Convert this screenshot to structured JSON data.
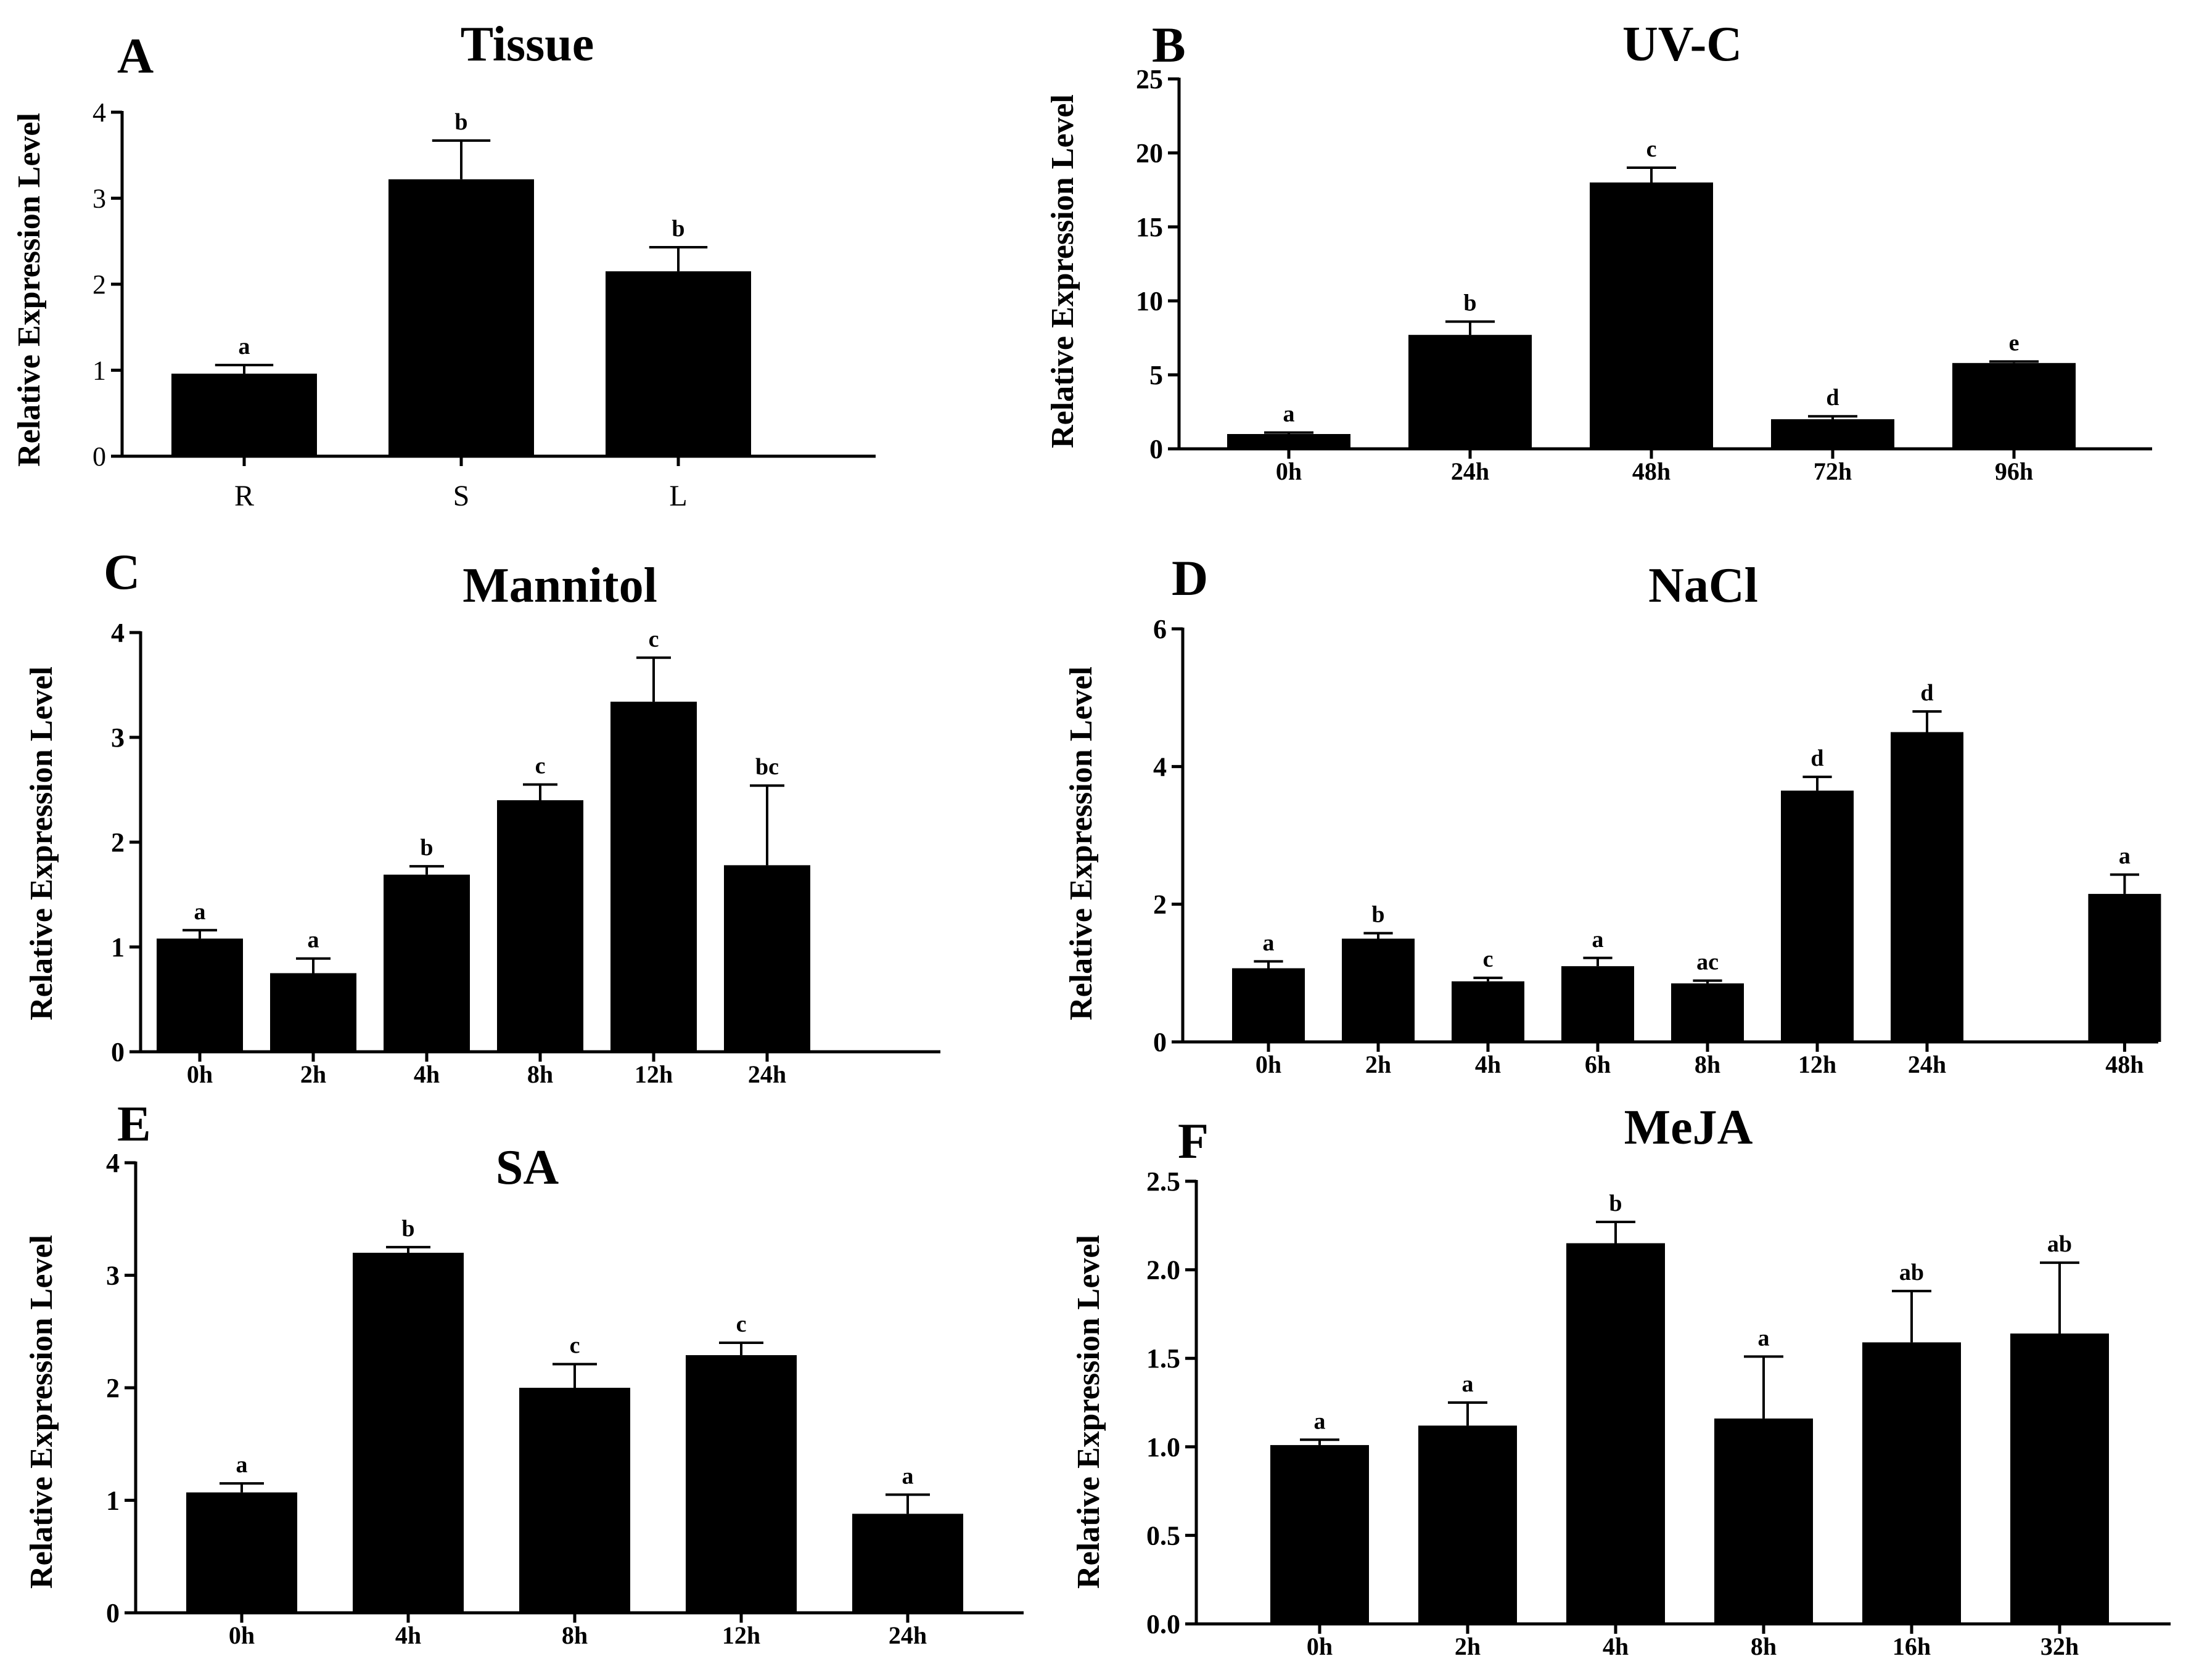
{
  "figure": {
    "ylabel": "Relative Expression Level"
  },
  "chart_data": [
    {
      "id": "A",
      "type": "bar",
      "panel": "A",
      "title": "Tissue",
      "ylabel": "Relative Expression Level",
      "xlabel": "",
      "ylim": [
        0,
        4
      ],
      "yticks": [
        0,
        1,
        2,
        3,
        4
      ],
      "ytick_labels": [
        "0",
        "1",
        "2",
        "3",
        "4"
      ],
      "categories": [
        "R",
        "S",
        "L"
      ],
      "values": [
        0.96,
        3.22,
        2.15
      ],
      "errors": [
        0.1,
        0.45,
        0.28
      ],
      "significance": [
        "a",
        "b",
        "b"
      ]
    },
    {
      "id": "B",
      "type": "bar",
      "panel": "B",
      "title": "UV-C",
      "ylabel": "Relative Expression Level",
      "xlabel": "",
      "ylim": [
        0,
        25
      ],
      "yticks": [
        0,
        5,
        10,
        15,
        20,
        25
      ],
      "ytick_labels": [
        "0",
        "5",
        "10",
        "15",
        "20",
        "25"
      ],
      "categories": [
        "0h",
        "24h",
        "48h",
        "72h",
        "96h"
      ],
      "values": [
        1.0,
        7.7,
        18.0,
        2.0,
        5.8
      ],
      "errors": [
        0.1,
        0.9,
        1.0,
        0.2,
        0.1
      ],
      "significance": [
        "a",
        "b",
        "c",
        "d",
        "e"
      ]
    },
    {
      "id": "C",
      "type": "bar",
      "panel": "C",
      "title": "Mannitol",
      "ylabel": "Relative Expression Level",
      "xlabel": "",
      "ylim": [
        0,
        4
      ],
      "yticks": [
        0,
        1,
        2,
        3,
        4
      ],
      "ytick_labels": [
        "0",
        "1",
        "2",
        "3",
        "4"
      ],
      "categories": [
        "0h",
        "2h",
        "4h",
        "8h",
        "12h",
        "24h"
      ],
      "values": [
        1.08,
        0.75,
        1.69,
        2.4,
        3.34,
        1.78
      ],
      "errors": [
        0.08,
        0.14,
        0.08,
        0.15,
        0.42,
        0.76
      ],
      "significance": [
        "a",
        "a",
        "b",
        "c",
        "c",
        "bc"
      ]
    },
    {
      "id": "D",
      "type": "bar",
      "panel": "D",
      "title": "NaCl",
      "ylabel": "Relative Expression Level",
      "xlabel": "",
      "ylim": [
        0,
        6
      ],
      "yticks": [
        0,
        2,
        4,
        6
      ],
      "ytick_labels": [
        "0",
        "2",
        "4",
        "6"
      ],
      "categories": [
        "0h",
        "2h",
        "4h",
        "6h",
        "8h",
        "12h",
        "24h",
        "48h"
      ],
      "values": [
        1.07,
        1.5,
        0.88,
        1.1,
        0.85,
        3.65,
        4.5,
        2.15
      ],
      "errors": [
        0.1,
        0.08,
        0.05,
        0.12,
        0.04,
        0.2,
        0.3,
        0.28
      ],
      "significance": [
        "a",
        "b",
        "c",
        "a",
        "ac",
        "d",
        "d",
        "a"
      ]
    },
    {
      "id": "E",
      "type": "bar",
      "panel": "E",
      "title": "SA",
      "ylabel": "Relative Expression Level",
      "xlabel": "",
      "ylim": [
        0,
        4
      ],
      "yticks": [
        0,
        1,
        2,
        3,
        4
      ],
      "ytick_labels": [
        "0",
        "1",
        "2",
        "3",
        "4"
      ],
      "categories": [
        "0h",
        "4h",
        "8h",
        "12h",
        "24h"
      ],
      "values": [
        1.07,
        3.2,
        2.0,
        2.29,
        0.88
      ],
      "errors": [
        0.08,
        0.05,
        0.21,
        0.11,
        0.17
      ],
      "significance": [
        "a",
        "b",
        "c",
        "c",
        "a"
      ]
    },
    {
      "id": "F",
      "type": "bar",
      "panel": "F",
      "title": "MeJA",
      "ylabel": "Relative Expression Level",
      "xlabel": "",
      "ylim": [
        0,
        2.5
      ],
      "yticks": [
        0,
        0.5,
        1.0,
        1.5,
        2.0,
        2.5
      ],
      "ytick_labels": [
        "0.0",
        "0.5",
        "1.0",
        "1.5",
        "2.0",
        "2.5"
      ],
      "categories": [
        "0h",
        "2h",
        "4h",
        "8h",
        "16h",
        "32h"
      ],
      "values": [
        1.01,
        1.12,
        2.15,
        1.16,
        1.59,
        1.64
      ],
      "errors": [
        0.03,
        0.13,
        0.12,
        0.35,
        0.29,
        0.4
      ],
      "significance": [
        "a",
        "a",
        "b",
        "a",
        "ab",
        "ab"
      ]
    }
  ]
}
